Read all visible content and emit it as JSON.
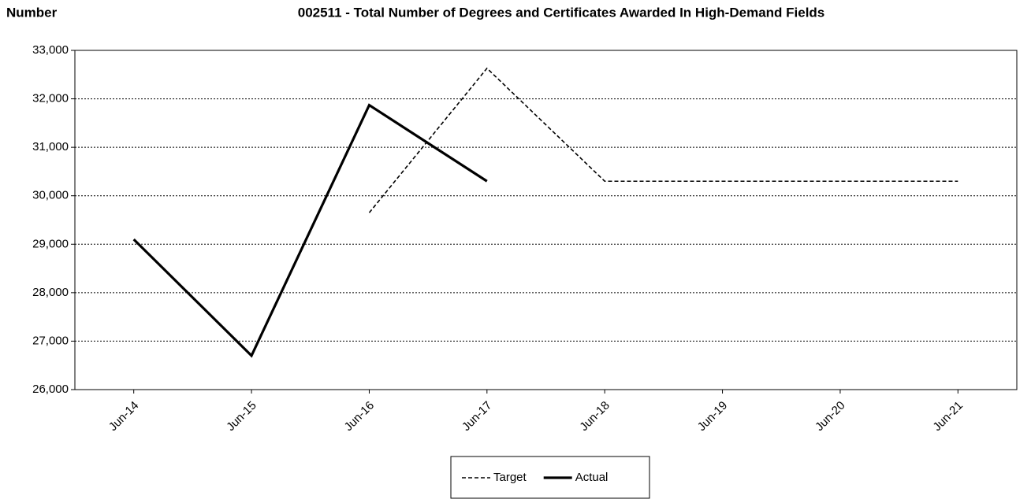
{
  "chart_data": {
    "type": "line",
    "title": "002511 - Total Number of Degrees and Certificates Awarded In High-Demand Fields",
    "y_label": "Number",
    "categories": [
      "Jun-14",
      "Jun-15",
      "Jun-16",
      "Jun-17",
      "Jun-18",
      "Jun-19",
      "Jun-20",
      "Jun-21"
    ],
    "series": [
      {
        "name": "Target",
        "color": "#000000",
        "dash": "dashed",
        "values": [
          null,
          null,
          29650,
          32630,
          30300,
          30300,
          30300,
          30300
        ]
      },
      {
        "name": "Actual",
        "color": "#000000",
        "dash": "solid",
        "values": [
          29100,
          26700,
          31870,
          30300,
          null,
          null,
          null,
          null
        ]
      }
    ],
    "ylim": [
      26000,
      33000
    ],
    "yticks": [
      {
        "value": 26000,
        "label": "26,000"
      },
      {
        "value": 27000,
        "label": "27,000"
      },
      {
        "value": 28000,
        "label": "28,000"
      },
      {
        "value": 29000,
        "label": "29,000"
      },
      {
        "value": 30000,
        "label": "30,000"
      },
      {
        "value": 31000,
        "label": "31,000"
      },
      {
        "value": 32000,
        "label": "32,000"
      },
      {
        "value": 33000,
        "label": "33,000"
      }
    ],
    "grid": true,
    "legend": "bottom"
  }
}
